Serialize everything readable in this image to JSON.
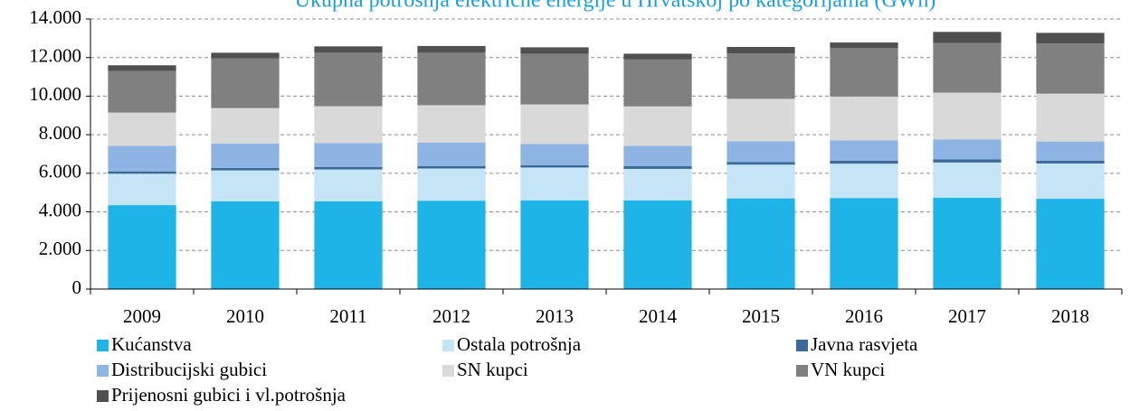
{
  "chart_data": {
    "type": "stacked_bar",
    "title": "Ukupna potrošnja električne energije u Hrvatskoj po kategorijama (GWh)",
    "categories": [
      "2009",
      "2010",
      "2011",
      "2012",
      "2013",
      "2014",
      "2015",
      "2016",
      "2017",
      "2018"
    ],
    "series": [
      {
        "name": "Kućanstva",
        "color": "#1fb4e8",
        "values": [
          4350,
          4550,
          4550,
          4580,
          4600,
          4600,
          4700,
          4720,
          4730,
          4680
        ]
      },
      {
        "name": "Ostala potrošnja",
        "color": "#c5e4f5",
        "values": [
          1630,
          1600,
          1650,
          1670,
          1700,
          1630,
          1750,
          1780,
          1830,
          1830
        ]
      },
      {
        "name": "Javna rasvjeta",
        "color": "#3a6a9a",
        "values": [
          120,
          130,
          130,
          130,
          120,
          140,
          130,
          150,
          160,
          140
        ]
      },
      {
        "name": "Distribucijski gubici",
        "color": "#8db4e2",
        "values": [
          1320,
          1270,
          1240,
          1220,
          1100,
          1050,
          1080,
          1060,
          1040,
          1000
        ]
      },
      {
        "name": "SN kupci",
        "color": "#d9d9d9",
        "values": [
          1730,
          1830,
          1910,
          1930,
          2050,
          2050,
          2200,
          2270,
          2420,
          2480
        ]
      },
      {
        "name": "VN kupci",
        "color": "#808080",
        "values": [
          2150,
          2570,
          2770,
          2720,
          2630,
          2430,
          2360,
          2520,
          2570,
          2600
        ]
      },
      {
        "name": "Prijenosni gubici i vl.potrošnja",
        "color": "#505050",
        "values": [
          300,
          300,
          330,
          350,
          330,
          300,
          330,
          280,
          580,
          550
        ]
      }
    ],
    "ylim": [
      0,
      14000
    ],
    "yticks": [
      0,
      {
        "value": 2000,
        "label": "2.000"
      },
      {
        "value": 4000,
        "label": "4.000"
      },
      {
        "value": 6000,
        "label": "6.000"
      },
      {
        "value": 8000,
        "label": "8.000"
      },
      {
        "value": 10000,
        "label": "10.000"
      },
      {
        "value": 12000,
        "label": "12.000"
      },
      {
        "value": 14000,
        "label": "14.000"
      }
    ],
    "grid": true
  }
}
